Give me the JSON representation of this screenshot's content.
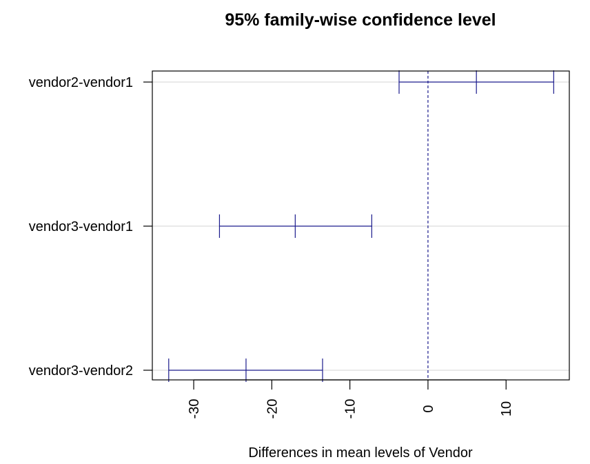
{
  "chart_data": {
    "type": "interval",
    "title": "95% family-wise confidence level",
    "xlabel": "Differences in mean levels of Vendor",
    "ylabel": "",
    "xlim": [
      -35.3,
      18.1
    ],
    "x_ticks": [
      -30,
      -20,
      -10,
      0,
      10
    ],
    "x_tick_labels": [
      "-30",
      "-20",
      "-10",
      "0",
      "10"
    ],
    "reference_line": 0,
    "grid": "horizontal",
    "color": "#1a1a8c",
    "comparisons": [
      {
        "label": "vendor2-vendor1",
        "lwr": -3.7,
        "diff": 6.2,
        "upr": 16.1
      },
      {
        "label": "vendor3-vendor1",
        "lwr": -26.7,
        "diff": -17.0,
        "upr": -7.2
      },
      {
        "label": "vendor3-vendor2",
        "lwr": -33.2,
        "diff": -23.3,
        "upr": -13.5
      }
    ]
  }
}
